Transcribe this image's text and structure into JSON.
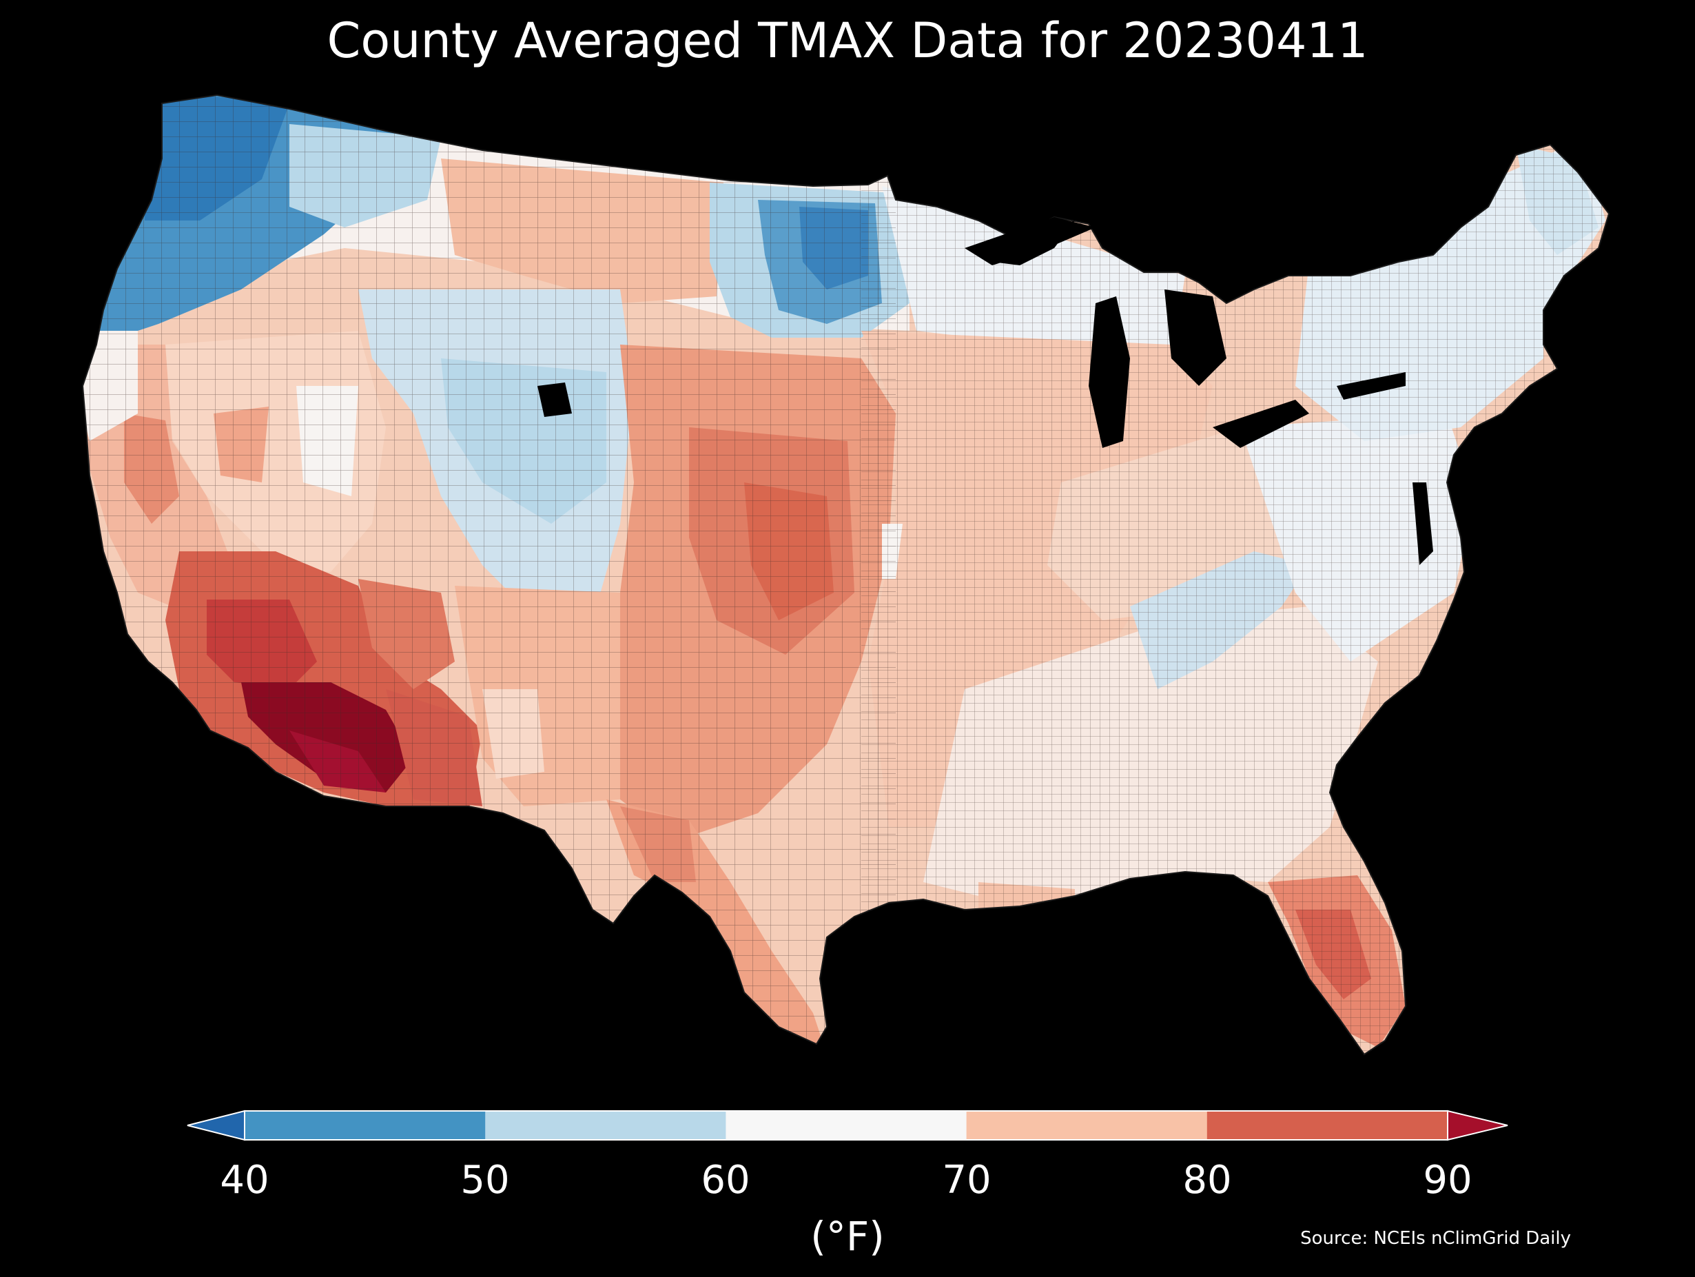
{
  "title": "County Averaged TMAX Data for 20230411",
  "colorbar": {
    "unit_label": "(°F)",
    "ticks": [
      "40",
      "50",
      "60",
      "70",
      "80",
      "90"
    ],
    "bins": [
      {
        "range": "<40",
        "color": "#2166ac"
      },
      {
        "range": "40-50",
        "color": "#4393c3"
      },
      {
        "range": "50-60",
        "color": "#b8d8e9"
      },
      {
        "range": "60-70",
        "color": "#f7f7f7"
      },
      {
        "range": "70-80",
        "color": "#f8c2a7"
      },
      {
        "range": "80-90",
        "color": "#d6604d"
      },
      {
        "range": ">90",
        "color": "#a50f2b"
      }
    ]
  },
  "source": "Source: NCEIs nClimGrid Daily",
  "regions": [
    {
      "name": "pacific-northwest",
      "category": "40-50"
    },
    {
      "name": "northern-rockies",
      "category": "50-60"
    },
    {
      "name": "northern-plains",
      "category": "70-80"
    },
    {
      "name": "upper-midwest-dakotas-minnesota",
      "category": "40-50"
    },
    {
      "name": "central-rockies",
      "category": "50-60"
    },
    {
      "name": "great-basin",
      "category": "70-80"
    },
    {
      "name": "california-coast",
      "category": "70-80"
    },
    {
      "name": "southern-california-desert",
      "category": "80-90"
    },
    {
      "name": "arizona-lower-desert",
      "category": ">90"
    },
    {
      "name": "new-mexico",
      "category": "70-80"
    },
    {
      "name": "southern-plains",
      "category": "80-90"
    },
    {
      "name": "texas",
      "category": "80-90"
    },
    {
      "name": "midwest",
      "category": "70-80"
    },
    {
      "name": "southeast",
      "category": "60-70"
    },
    {
      "name": "appalachians",
      "category": "50-60"
    },
    {
      "name": "great-lakes-north",
      "category": "60-70"
    },
    {
      "name": "northeast",
      "category": "50-60"
    },
    {
      "name": "florida",
      "category": "80-90"
    }
  ]
}
